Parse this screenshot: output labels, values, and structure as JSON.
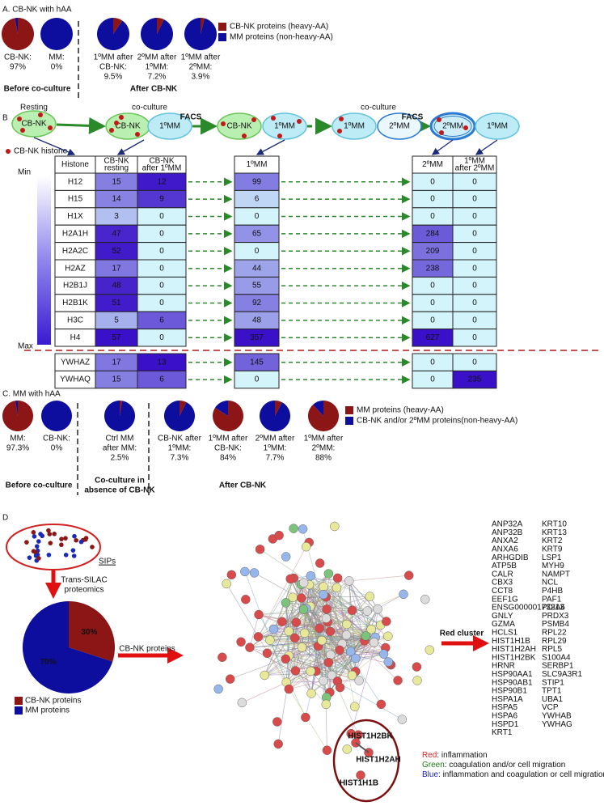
{
  "panel_a": {
    "title": "A. CB-NK with hAA",
    "pies": [
      {
        "caption": [
          "CB-NK:",
          "97%"
        ],
        "value": 97
      },
      {
        "caption": [
          "MM:",
          "0%"
        ],
        "value": 0
      },
      {
        "caption": [
          "1ºMM after",
          "CB-NK:",
          "9.5%"
        ],
        "value": 9.5
      },
      {
        "caption": [
          "2ºMM after",
          "1ºMM:",
          "7.2%"
        ],
        "value": 7.2
      },
      {
        "caption": [
          "1ºMM after",
          "2ºMM:",
          "3.9%"
        ],
        "value": 3.9
      }
    ],
    "groups": [
      [
        "Before co-culture"
      ],
      [
        "After CB-NK"
      ]
    ],
    "legend": [
      {
        "label": "CB-NK proteins (heavy-AA)",
        "color": "#8c1515"
      },
      {
        "label": "MM proteins (non-heavy-AA)",
        "color": "#0d0d9e"
      }
    ]
  },
  "panel_b": {
    "label": "B",
    "diagram": {
      "labels": [
        "Resting",
        "co-culture",
        "FACS",
        "co-culture",
        "FACS"
      ],
      "cells": [
        "CB-NK",
        "CB-NK",
        "1ºMM",
        "CB-NK",
        "1ºMM",
        "1ºMM",
        "2ºMM",
        "2ºMM",
        "1ºMM"
      ],
      "histone_legend": "CB-NK histone"
    },
    "scale": [
      "Min",
      "Max"
    ],
    "headers": [
      [
        "Histone"
      ],
      [
        "CB-NK",
        "resting"
      ],
      [
        "CB-NK",
        "after 1ºMM"
      ],
      [
        "1ºMM"
      ],
      [
        "2ºMM"
      ],
      [
        "1ºMM",
        "after 2ºMM"
      ]
    ],
    "rows": [
      [
        "H12",
        15,
        12,
        99,
        0,
        0
      ],
      [
        "H15",
        14,
        9,
        6,
        0,
        0
      ],
      [
        "H1X",
        3,
        0,
        0,
        0,
        0
      ],
      [
        "H2A1H",
        47,
        0,
        65,
        284,
        0
      ],
      [
        "H2A2C",
        52,
        0,
        0,
        209,
        0
      ],
      [
        "H2AZ",
        17,
        0,
        44,
        238,
        0
      ],
      [
        "H2B1J",
        48,
        0,
        55,
        0,
        0
      ],
      [
        "H2B1K",
        51,
        0,
        92,
        0,
        0
      ],
      [
        "H3C",
        5,
        6,
        48,
        0,
        0
      ],
      [
        "H4",
        57,
        0,
        357,
        627,
        0
      ]
    ],
    "extra_rows": [
      [
        "YWHAZ",
        17,
        13,
        145,
        0,
        0
      ],
      [
        "YWHAQ",
        15,
        6,
        0,
        0,
        235
      ]
    ]
  },
  "panel_c": {
    "title": "C. MM with hAA",
    "pies": [
      {
        "caption": [
          "MM:",
          "97.3%"
        ],
        "value": 97.3
      },
      {
        "caption": [
          "CB-NK:",
          "0%"
        ],
        "value": 0
      },
      {
        "caption": [
          "Ctrl MM",
          "after MM:",
          "2.5%"
        ],
        "value": 2.5
      },
      {
        "caption": [
          "CB-NK after",
          "1ºMM:",
          "7.3%"
        ],
        "value": 7.3
      },
      {
        "caption": [
          "1ºMM after",
          "CB-NK:",
          "84%"
        ],
        "value": 84
      },
      {
        "caption": [
          "2ºMM after",
          "1ºMM:",
          "7.7%"
        ],
        "value": 7.7
      },
      {
        "caption": [
          "1ºMM after",
          "2ºMM:",
          "88%"
        ],
        "value": 88
      }
    ],
    "groups": [
      [
        "Before co-culture"
      ],
      [
        "Co-culture in",
        "absence of CB-NK"
      ],
      [
        "After CB-NK"
      ]
    ],
    "legend": [
      {
        "label": "MM proteins (heavy-AA)",
        "color": "#8c1515"
      },
      {
        "label": "CB-NK and/or 2ºMM proteins(non-heavy-AA)",
        "color": "#0d0d9e"
      }
    ]
  },
  "panel_d": {
    "label": "D",
    "sips": "SIPs",
    "method": [
      "Trans-SILAC",
      "proteomics"
    ],
    "pie": [
      {
        "name": "CB-NK proteins",
        "value": 30,
        "value_label": "30%",
        "color": "#8c1515"
      },
      {
        "name": "MM proteins",
        "value": 70,
        "value_label": "70%",
        "color": "#0d0d9e"
      }
    ],
    "arrow_label": "CB-NK proteins",
    "highlight": [
      "HIST1H2BK",
      "HIST1H2AH",
      "HIST1H1B"
    ],
    "cluster_label": "Red cluster",
    "genes": [
      [
        {
          "name": "ANP32A",
          "color": "#e02020"
        },
        {
          "name": "ANP32B",
          "color": "#e02020"
        },
        {
          "name": "ANXA2",
          "color": "#1a1acc"
        },
        {
          "name": "ANXA6",
          "color": "#1a1acc"
        },
        {
          "name": "ARHGDIB",
          "color": "#1a7a1a"
        },
        {
          "name": "ATP5B",
          "color": "#e02020"
        },
        {
          "name": "CALR",
          "color": "#1a1acc"
        },
        {
          "name": "CBX3",
          "color": "#e02020"
        },
        {
          "name": "CCT8",
          "color": "#1a1acc"
        },
        {
          "name": "EEF1G",
          "color": "#111111"
        },
        {
          "name": "ENSG00000173213",
          "color": "#111111"
        },
        {
          "name": "GNLY",
          "color": "#1a1acc"
        },
        {
          "name": "GZMA",
          "color": "#1a1acc"
        },
        {
          "name": "HCLS1",
          "color": "#1a1acc"
        },
        {
          "name": "HIST1H1B",
          "color": "#1a1acc"
        },
        {
          "name": "HIST1H2AH",
          "color": "#1a1acc"
        },
        {
          "name": "HIST1H2BK",
          "color": "#1a1acc"
        },
        {
          "name": "HRNR",
          "color": "#e02020"
        },
        {
          "name": "HSP90AA1",
          "color": "#1a1acc"
        },
        {
          "name": "HSP90AB1",
          "color": "#1a1acc"
        },
        {
          "name": "HSP90B1",
          "color": "#1a1acc"
        },
        {
          "name": "HSPA1A",
          "color": "#1a1acc"
        },
        {
          "name": "HSPA5",
          "color": "#1a1acc"
        },
        {
          "name": "HSPA6",
          "color": "#1a1acc"
        },
        {
          "name": "HSPD1",
          "color": "#1a1acc"
        },
        {
          "name": "KRT1",
          "color": "#e02020"
        }
      ],
      [
        {
          "name": "KRT10",
          "color": "#e02020"
        },
        {
          "name": "KRT13",
          "color": "#e02020"
        },
        {
          "name": "KRT2",
          "color": "#e02020"
        },
        {
          "name": "KRT9",
          "color": "#e02020"
        },
        {
          "name": "LSP1",
          "color": "#1a1acc"
        },
        {
          "name": "MYH9",
          "color": "#1a1acc"
        },
        {
          "name": "NAMPT",
          "color": "#e02020"
        },
        {
          "name": "NCL",
          "color": "#111111"
        },
        {
          "name": "P4HB",
          "color": "#111111"
        },
        {
          "name": "PAF1",
          "color": "#e02020"
        },
        {
          "name": "PDIA6",
          "color": "#e02020"
        },
        {
          "name": "PRDX3",
          "color": "#e02020"
        },
        {
          "name": "PSMB4",
          "color": "#e02020"
        },
        {
          "name": "RPL22",
          "color": "#e02020"
        },
        {
          "name": "RPL29",
          "color": "#1a1acc"
        },
        {
          "name": "RPL5",
          "color": "#e02020"
        },
        {
          "name": "S100A4",
          "color": "#1a1acc"
        },
        {
          "name": "SERBP1",
          "color": "#111111"
        },
        {
          "name": "SLC9A3R1",
          "color": "#1a1acc"
        },
        {
          "name": "STIP1",
          "color": "#1a1acc"
        },
        {
          "name": "TPT1",
          "color": "#111111"
        },
        {
          "name": "UBA1",
          "color": "#111111"
        },
        {
          "name": "VCP",
          "color": "#111111"
        },
        {
          "name": "YWHAB",
          "color": "#e02020"
        },
        {
          "name": "YWHAG",
          "color": "#e02020"
        }
      ]
    ],
    "legend": [
      {
        "key": "Red",
        "text": ": inflammation",
        "color": "#e02020"
      },
      {
        "key": "Green",
        "text": ": coagulation and/or cell migration",
        "color": "#1a7a1a"
      },
      {
        "key": "Blue",
        "text": ": inflammation and coagulation or cell migration",
        "color": "#1a1acc"
      }
    ]
  }
}
